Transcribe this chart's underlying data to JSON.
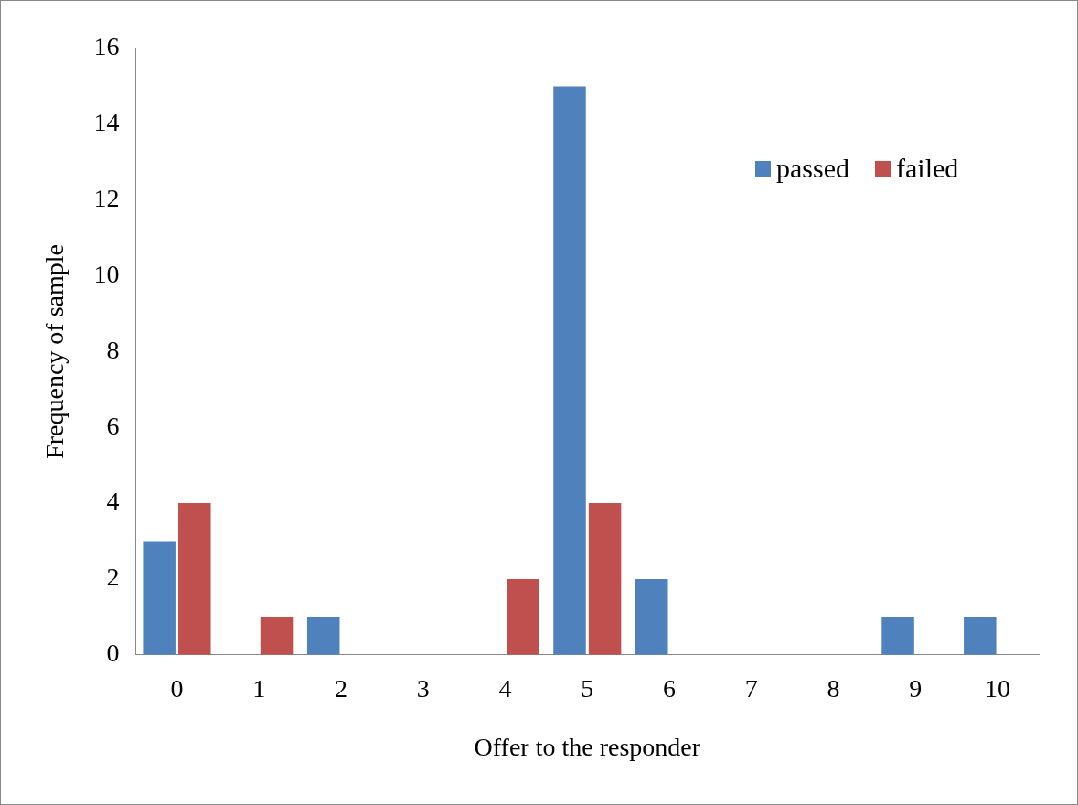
{
  "chart_data": {
    "type": "bar",
    "xlabel": "Offer to the responder",
    "ylabel": "Frequency of sample",
    "categories": [
      "0",
      "1",
      "2",
      "3",
      "4",
      "5",
      "6",
      "7",
      "8",
      "9",
      "10"
    ],
    "series": [
      {
        "name": "passed",
        "color": "#4f81bd",
        "values": [
          3,
          0,
          1,
          0,
          0,
          15,
          2,
          0,
          0,
          1,
          1
        ]
      },
      {
        "name": "failed",
        "color": "#c0504d",
        "values": [
          4,
          1,
          0,
          0,
          2,
          4,
          0,
          0,
          0,
          0,
          0
        ]
      }
    ],
    "ylim": [
      0,
      16
    ],
    "yticks": [
      0,
      2,
      4,
      6,
      8,
      10,
      12,
      14,
      16
    ],
    "grid": false,
    "legend": "top right"
  }
}
